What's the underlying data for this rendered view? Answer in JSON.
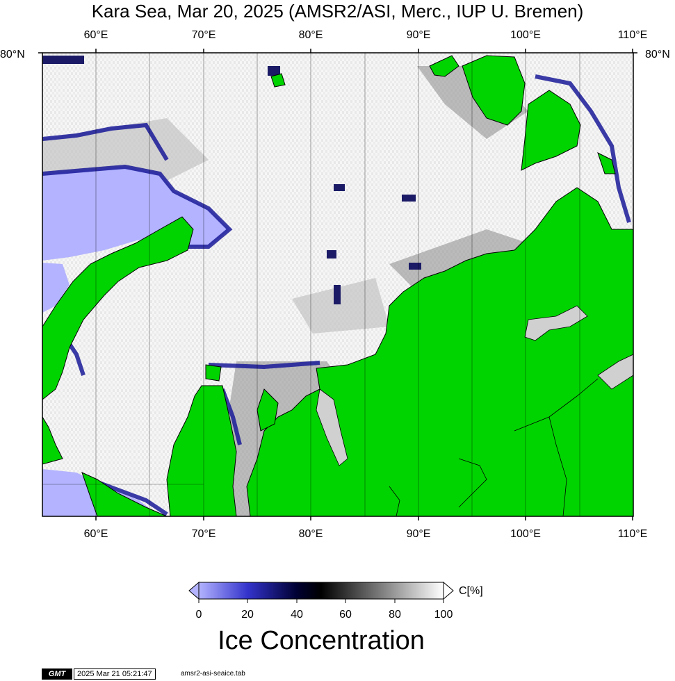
{
  "title": "Kara Sea, Mar 20, 2025 (AMSR2/ASI, Merc., IUP U. Bremen)",
  "longitude_labels": [
    "60°E",
    "70°E",
    "80°E",
    "90°E",
    "100°E",
    "110°E"
  ],
  "latitude_labels": {
    "left": "80°N",
    "right": "80°N"
  },
  "colorbar": {
    "ticks": [
      "0",
      "20",
      "40",
      "60",
      "80",
      "100"
    ],
    "unit": "C[%]",
    "title": "Ice Concentration",
    "stops": [
      "#b3b3ff",
      "#3333cc",
      "#000033",
      "#000000",
      "#808080",
      "#ffffff"
    ]
  },
  "colors": {
    "land": "#00d400",
    "open_water": "#b3b3ff",
    "ice": "#f4f4f4"
  },
  "footer": {
    "logo": "GMT",
    "timestamp": "2025 Mar 21 05:21:47",
    "source": "amsr2-asi-seaice.tab"
  }
}
